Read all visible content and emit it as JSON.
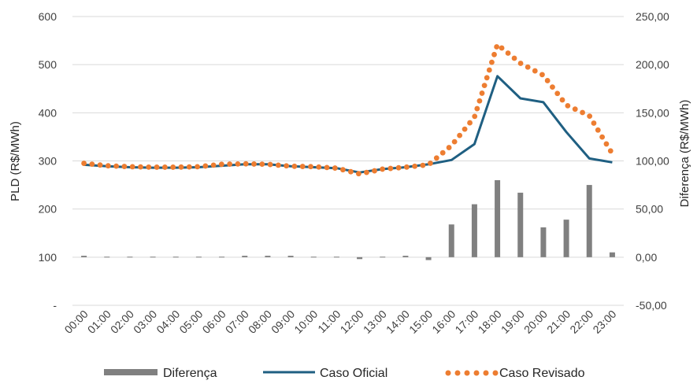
{
  "chart_data": {
    "type": "line",
    "categories": [
      "00:00",
      "01:00",
      "02:00",
      "03:00",
      "04:00",
      "05:00",
      "06:00",
      "07:00",
      "08:00",
      "09:00",
      "10:00",
      "11:00",
      "12:00",
      "13:00",
      "14:00",
      "15:00",
      "16:00",
      "17:00",
      "18:00",
      "19:00",
      "20:00",
      "21:00",
      "22:00",
      "23:00"
    ],
    "series": [
      {
        "name": "Diferença",
        "type": "bar",
        "axis": "right",
        "color": "#808080",
        "values": [
          1.5,
          0.5,
          0.5,
          0.5,
          0.5,
          0.5,
          0.5,
          1.5,
          1.5,
          1.5,
          0.5,
          0.5,
          -2,
          0.5,
          1.5,
          -3,
          34,
          55,
          80,
          67,
          31,
          39,
          75,
          5
        ]
      },
      {
        "name": "Caso Oficial",
        "type": "line",
        "axis": "left",
        "color": "#1f5f82",
        "values": [
          292,
          289,
          287,
          286,
          286,
          287,
          290,
          293,
          293,
          289,
          287,
          285,
          276,
          283,
          287,
          293,
          302,
          335,
          476,
          430,
          422,
          360,
          305,
          297
        ]
      },
      {
        "name": "Caso Revisado",
        "type": "dotted-line",
        "axis": "left",
        "color": "#ed7d31",
        "values": [
          295,
          290,
          288,
          287,
          287,
          288,
          293,
          294,
          293,
          289,
          288,
          285,
          273,
          283,
          287,
          292,
          332,
          391,
          542,
          503,
          478,
          416,
          394,
          315
        ]
      }
    ],
    "ylabel": "PLD (R$/MWh)",
    "y2label": "Diferença (R$/MWh)",
    "yticks": [
      "600",
      "500",
      "400",
      "300",
      "200",
      "100",
      "-"
    ],
    "y2ticks": [
      "250,00",
      "200,00",
      "150,00",
      "100,00",
      "50,00",
      "0,00",
      "-50,00"
    ],
    "ylim": [
      0,
      600
    ],
    "y2lim": [
      -50,
      250
    ],
    "grid": true,
    "legend_position": "bottom"
  }
}
